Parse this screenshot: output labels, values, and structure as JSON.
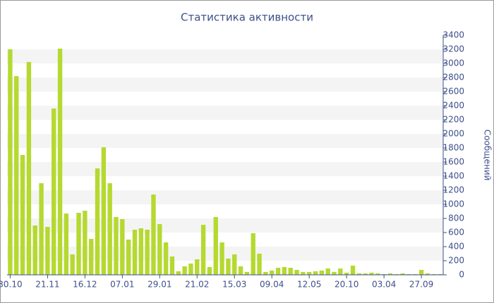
{
  "chart_data": {
    "type": "bar",
    "title": "Статистика активности",
    "y_label": "Сообщений",
    "categories": [
      "30.10",
      null,
      null,
      null,
      null,
      null,
      "21.11",
      null,
      null,
      null,
      null,
      null,
      "16.12",
      null,
      null,
      null,
      null,
      null,
      "07.01",
      null,
      null,
      null,
      null,
      null,
      "29.01",
      null,
      null,
      null,
      null,
      null,
      "21.02",
      null,
      null,
      null,
      null,
      null,
      "15.03",
      null,
      null,
      null,
      null,
      null,
      "09.04",
      null,
      null,
      null,
      null,
      null,
      "12.05",
      null,
      null,
      null,
      null,
      null,
      "20.10",
      null,
      null,
      null,
      null,
      null,
      "03.04",
      null,
      null,
      null,
      null,
      null,
      "27.09",
      null,
      null,
      null
    ],
    "values": [
      3200,
      2820,
      1700,
      3020,
      700,
      1300,
      680,
      2360,
      3210,
      870,
      290,
      880,
      910,
      510,
      1510,
      1810,
      1300,
      820,
      790,
      500,
      640,
      660,
      640,
      1140,
      720,
      460,
      260,
      50,
      120,
      160,
      220,
      710,
      110,
      820,
      460,
      230,
      290,
      120,
      40,
      590,
      300,
      40,
      60,
      100,
      110,
      100,
      70,
      40,
      40,
      50,
      60,
      90,
      40,
      90,
      30,
      130,
      20,
      20,
      30,
      20,
      10,
      20,
      10,
      20,
      10,
      10,
      70,
      20,
      10,
      10
    ],
    "color": "#b5d930",
    "ylim": [
      0,
      3400
    ],
    "yticks": [
      0,
      200,
      400,
      600,
      800,
      1000,
      1200,
      1400,
      1600,
      1800,
      2000,
      2200,
      2400,
      2600,
      2800,
      3000,
      3200,
      3400
    ],
    "grid": true
  }
}
